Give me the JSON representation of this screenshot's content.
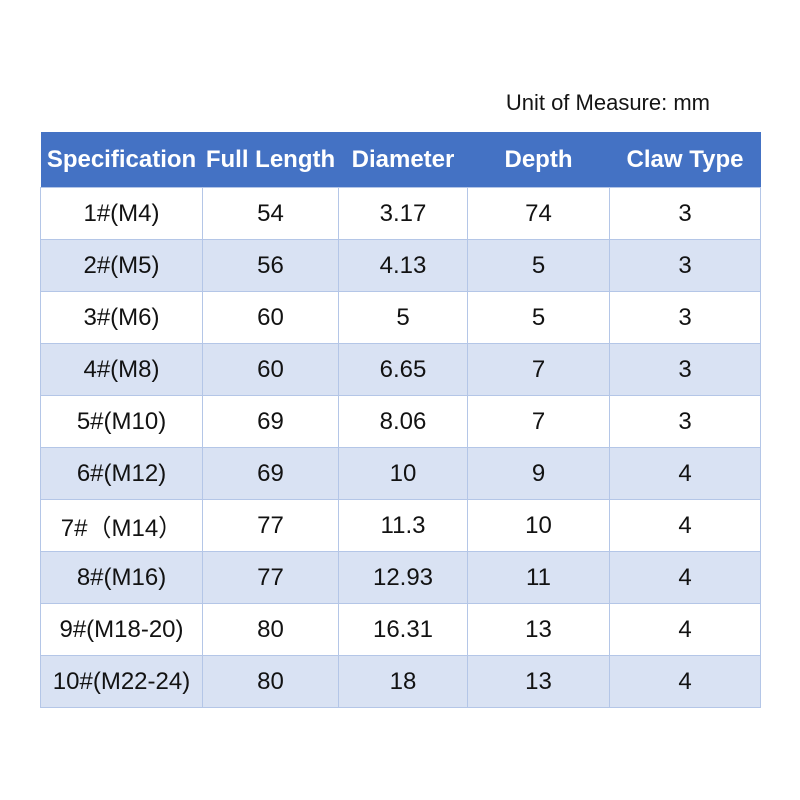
{
  "unit_note": "Unit of Measure: mm",
  "table": {
    "columns": [
      "Specification",
      "Full Length",
      "Diameter",
      "Depth",
      "Claw Type"
    ],
    "rows": [
      [
        "1#(M4)",
        "54",
        "3.17",
        "74",
        "3"
      ],
      [
        "2#(M5)",
        "56",
        "4.13",
        "5",
        "3"
      ],
      [
        "3#(M6)",
        "60",
        "5",
        "5",
        "3"
      ],
      [
        "4#(M8)",
        "60",
        "6.65",
        "7",
        "3"
      ],
      [
        "5#(M10)",
        "69",
        "8.06",
        "7",
        "3"
      ],
      [
        "6#(M12)",
        "69",
        "10",
        "9",
        "4"
      ],
      [
        "7#（M14）",
        "77",
        "11.3",
        "10",
        "4"
      ],
      [
        "8#(M16)",
        "77",
        "12.93",
        "11",
        "4"
      ],
      [
        "9#(M18-20)",
        "80",
        "16.31",
        "13",
        "4"
      ],
      [
        "10#(M22-24)",
        "80",
        "18",
        "13",
        "4"
      ]
    ],
    "colors": {
      "header_bg": "#4472C4",
      "header_text": "#FFFFFF",
      "row_bg": "#FFFFFF",
      "row_alt_bg": "#D9E2F3",
      "border": "#B4C6E7",
      "cell_text": "#121212"
    }
  },
  "chart_data": {
    "type": "table",
    "title": "Unit of Measure: mm",
    "columns": [
      "Specification",
      "Full Length",
      "Diameter",
      "Depth",
      "Claw Type"
    ],
    "rows": [
      [
        "1#(M4)",
        "54",
        "3.17",
        "74",
        "3"
      ],
      [
        "2#(M5)",
        "56",
        "4.13",
        "5",
        "3"
      ],
      [
        "3#(M6)",
        "60",
        "5",
        "5",
        "3"
      ],
      [
        "4#(M8)",
        "60",
        "6.65",
        "7",
        "3"
      ],
      [
        "5#(M10)",
        "69",
        "8.06",
        "7",
        "3"
      ],
      [
        "6#(M12)",
        "69",
        "10",
        "9",
        "4"
      ],
      [
        "7#（M14）",
        "77",
        "11.3",
        "10",
        "4"
      ],
      [
        "8#(M16)",
        "77",
        "12.93",
        "11",
        "4"
      ],
      [
        "9#(M18-20)",
        "80",
        "16.31",
        "13",
        "4"
      ],
      [
        "10#(M22-24)",
        "80",
        "18",
        "13",
        "4"
      ]
    ]
  }
}
